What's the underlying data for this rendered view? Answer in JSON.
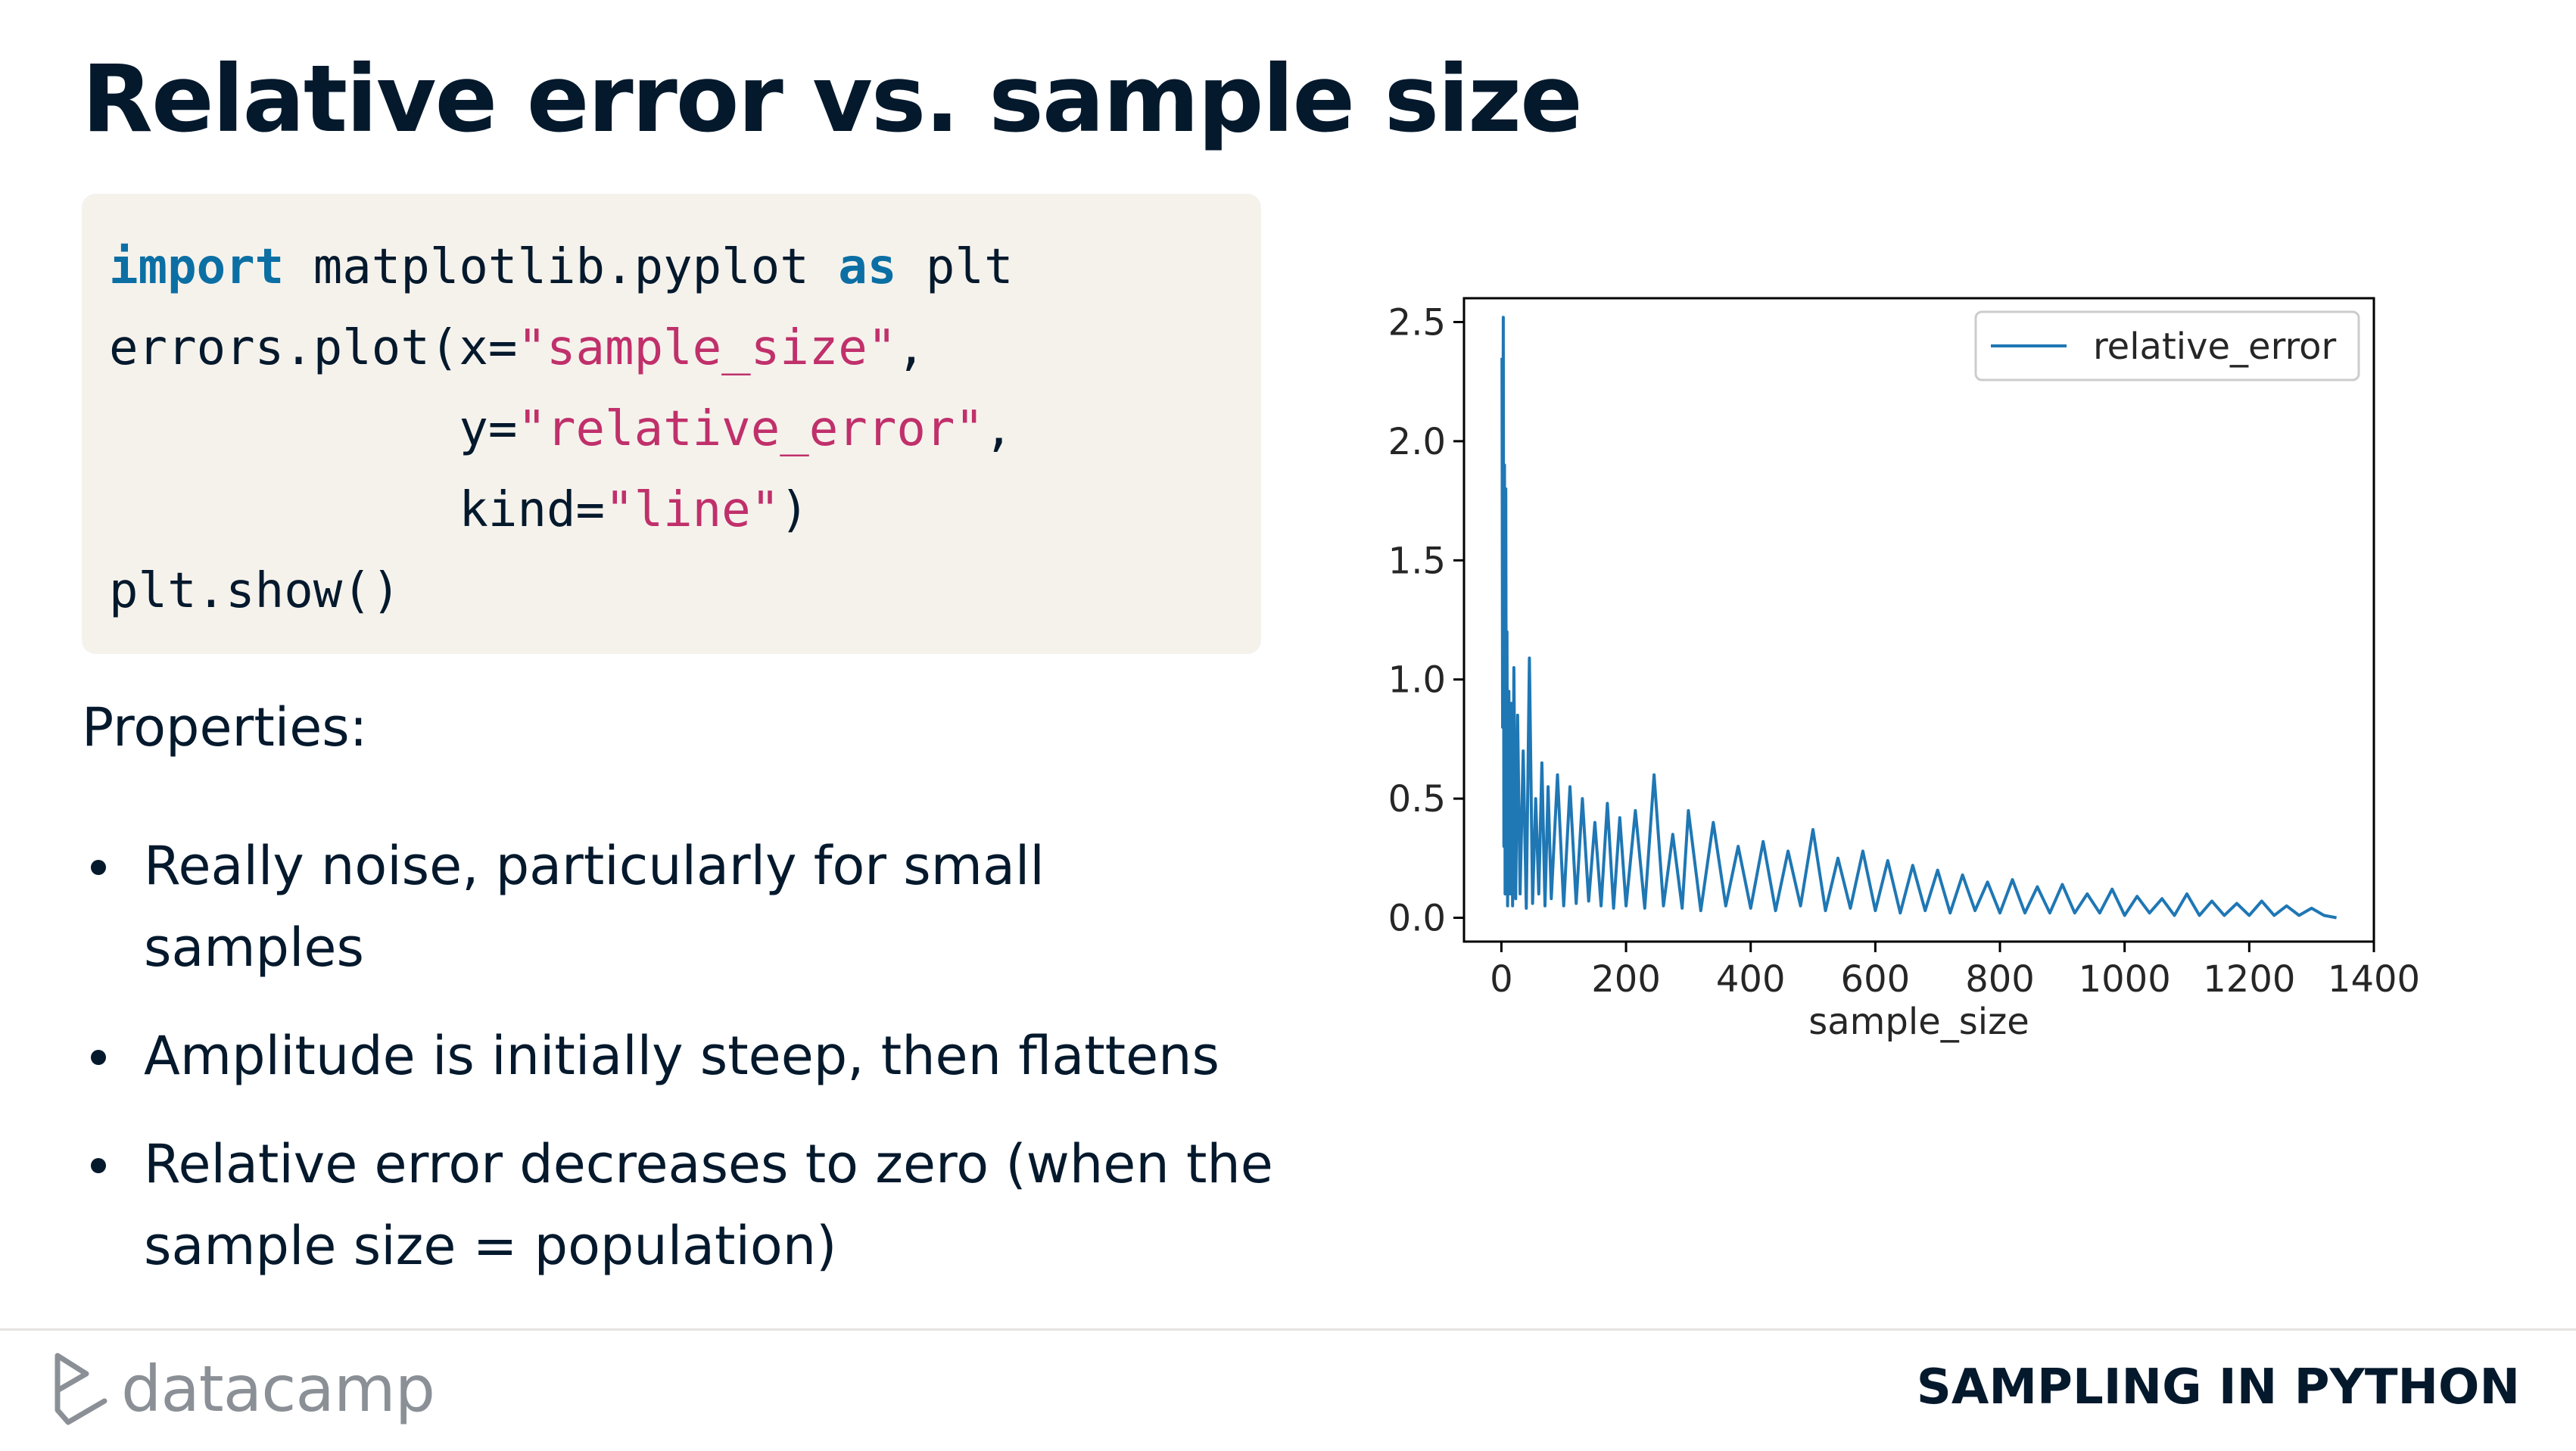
{
  "slide": {
    "title": "Relative error vs. sample size",
    "properties_heading": "Properties:",
    "bullets": [
      "Really noise, particularly for small samples",
      "Amplitude is initially steep, then flattens",
      "Relative error decreases to zero (when the sample size = population)"
    ]
  },
  "code": {
    "import_kw": "import",
    "module": " matplotlib.pyplot ",
    "as_kw": "as",
    "alias": " plt",
    "l2_a": "errors.plot(x=",
    "l2_str": "\"sample_size\"",
    "l2_b": ",",
    "l3_a": "            y=",
    "l3_str": "\"relative_error\"",
    "l3_b": ",",
    "l4_a": "            kind=",
    "l4_str": "\"line\"",
    "l4_b": ")",
    "l5": "plt.show()"
  },
  "footer": {
    "brand": "datacamp",
    "course": "SAMPLING IN PYTHON"
  },
  "colors": {
    "line": "#1f77b4",
    "keyword": "#0b6fa4",
    "string": "#c0306b",
    "text": "#05192d"
  },
  "chart_data": {
    "type": "line",
    "title": "",
    "xlabel": "sample_size",
    "ylabel": "",
    "xlim": [
      -60,
      1400
    ],
    "ylim": [
      -0.1,
      2.6
    ],
    "xticks": [
      0,
      200,
      400,
      600,
      800,
      1000,
      1200,
      1400
    ],
    "yticks": [
      0.0,
      0.5,
      1.0,
      1.5,
      2.0,
      2.5
    ],
    "xtick_labels": [
      "0",
      "200",
      "400",
      "600",
      "800",
      "1000",
      "1200",
      "1400"
    ],
    "ytick_labels": [
      "0.0",
      "0.5",
      "1.0",
      "1.5",
      "2.0",
      "2.5"
    ],
    "legend": {
      "position": "top-right",
      "entries": [
        "relative_error"
      ]
    },
    "grid": false,
    "series": [
      {
        "name": "relative_error",
        "x": [
          1,
          2,
          3,
          4,
          5,
          6,
          7,
          8,
          9,
          10,
          12,
          14,
          16,
          18,
          20,
          23,
          26,
          30,
          35,
          40,
          45,
          50,
          55,
          60,
          65,
          70,
          75,
          80,
          90,
          100,
          110,
          120,
          130,
          140,
          150,
          160,
          170,
          180,
          190,
          200,
          215,
          230,
          245,
          260,
          275,
          290,
          300,
          320,
          340,
          360,
          380,
          400,
          420,
          440,
          460,
          480,
          500,
          520,
          540,
          560,
          580,
          600,
          620,
          640,
          660,
          680,
          700,
          720,
          740,
          760,
          780,
          800,
          820,
          840,
          860,
          880,
          900,
          920,
          940,
          960,
          980,
          1000,
          1020,
          1040,
          1060,
          1080,
          1100,
          1120,
          1140,
          1160,
          1180,
          1200,
          1220,
          1240,
          1260,
          1280,
          1300,
          1320,
          1340
        ],
        "y": [
          2.35,
          0.8,
          2.52,
          0.3,
          1.9,
          0.1,
          1.8,
          0.25,
          1.2,
          0.05,
          0.95,
          0.1,
          0.9,
          0.05,
          1.05,
          0.08,
          0.85,
          0.1,
          0.7,
          0.04,
          1.09,
          0.06,
          0.5,
          0.1,
          0.65,
          0.05,
          0.55,
          0.08,
          0.6,
          0.05,
          0.55,
          0.06,
          0.5,
          0.07,
          0.4,
          0.05,
          0.48,
          0.04,
          0.42,
          0.05,
          0.45,
          0.04,
          0.6,
          0.05,
          0.35,
          0.04,
          0.45,
          0.03,
          0.4,
          0.05,
          0.3,
          0.04,
          0.32,
          0.03,
          0.28,
          0.05,
          0.37,
          0.03,
          0.25,
          0.04,
          0.28,
          0.03,
          0.24,
          0.02,
          0.22,
          0.03,
          0.2,
          0.02,
          0.18,
          0.03,
          0.15,
          0.02,
          0.16,
          0.02,
          0.13,
          0.02,
          0.14,
          0.02,
          0.1,
          0.02,
          0.12,
          0.01,
          0.09,
          0.02,
          0.08,
          0.01,
          0.1,
          0.01,
          0.07,
          0.01,
          0.06,
          0.01,
          0.07,
          0.01,
          0.05,
          0.01,
          0.04,
          0.01,
          0.0
        ]
      }
    ]
  }
}
